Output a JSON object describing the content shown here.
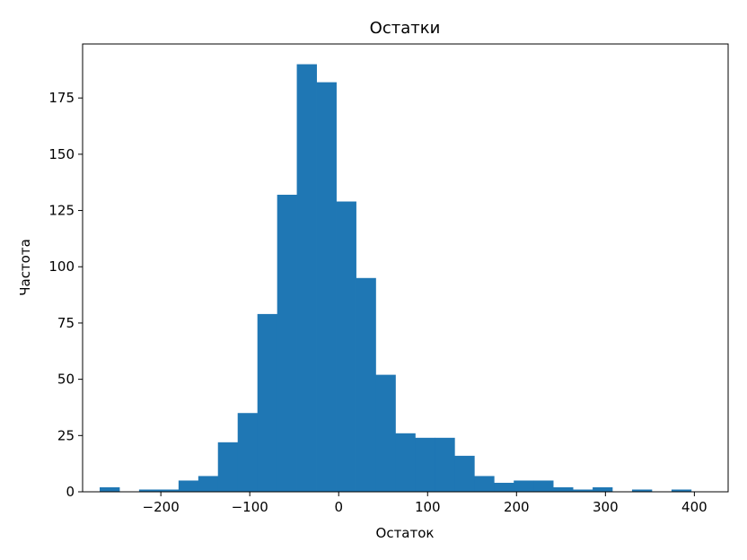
{
  "chart_data": {
    "type": "bar",
    "subtype": "histogram",
    "title": "Остатки",
    "xlabel": "Остаток",
    "ylabel": "Частота",
    "bar_color": "#1f77b4",
    "bin_edges": [
      -268.8,
      -246.6,
      -224.5,
      -202.3,
      -180.1,
      -157.9,
      -135.8,
      -113.6,
      -91.4,
      -69.2,
      -47.1,
      -24.9,
      -2.7,
      19.5,
      41.6,
      63.8,
      86.0,
      108.2,
      130.3,
      152.5,
      174.7,
      196.9,
      219.0,
      241.2,
      263.4,
      285.6,
      307.7,
      329.9,
      352.1,
      374.3,
      396.4,
      418.6
    ],
    "values": [
      2,
      0,
      1,
      1,
      5,
      7,
      22,
      35,
      79,
      132,
      190,
      182,
      129,
      95,
      52,
      26,
      24,
      24,
      16,
      7,
      4,
      5,
      5,
      2,
      1,
      2,
      0,
      1,
      0,
      1,
      0
    ],
    "xlim": [
      -288,
      438
    ],
    "ylim": [
      0,
      199
    ],
    "xticks": [
      -200,
      -100,
      0,
      100,
      200,
      300,
      400
    ],
    "xtick_labels": [
      "−200",
      "−100",
      "0",
      "100",
      "200",
      "300",
      "400"
    ],
    "yticks": [
      0,
      25,
      50,
      75,
      100,
      125,
      150,
      175
    ],
    "ytick_labels": [
      "0",
      "25",
      "50",
      "75",
      "100",
      "125",
      "150",
      "175"
    ],
    "grid": false,
    "legend": false
  }
}
